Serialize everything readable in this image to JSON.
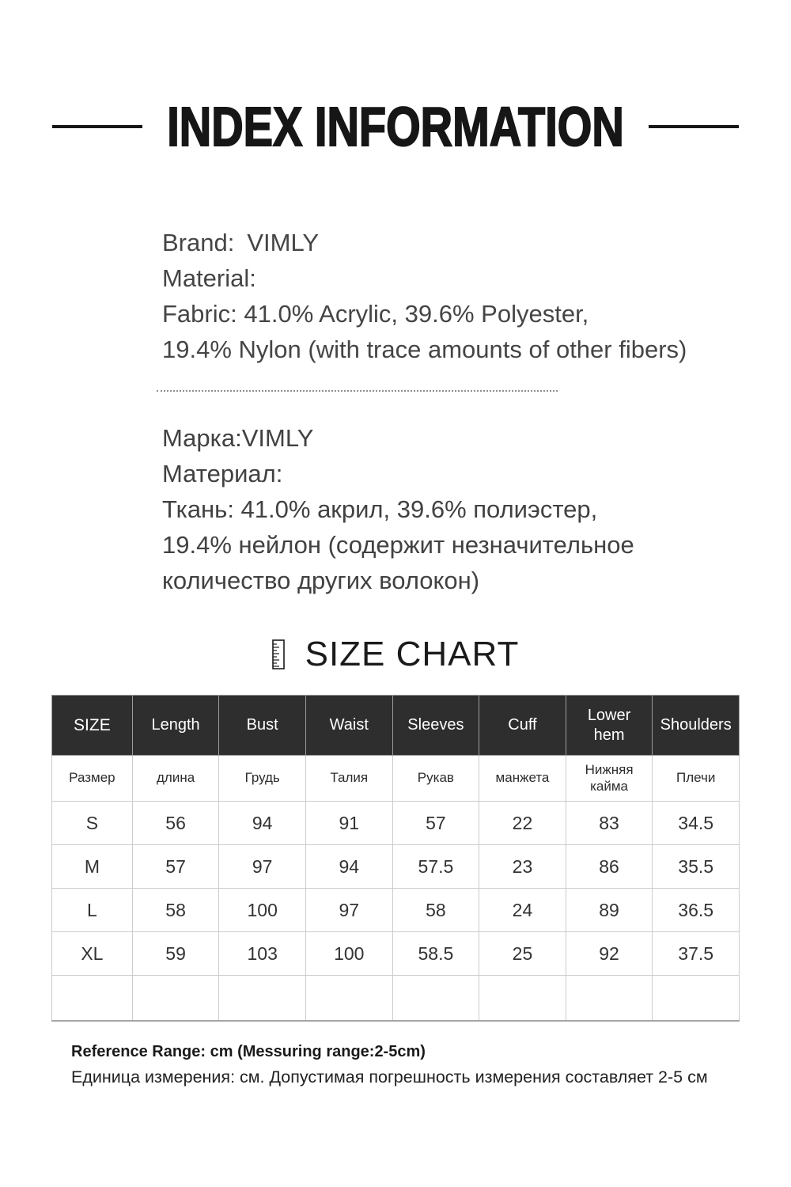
{
  "page": {
    "title": "INDEX INFORMATION",
    "background": "#ffffff"
  },
  "info_en": {
    "brand_label": "Brand:",
    "brand_value": "VIMLY",
    "material_label": "Material:",
    "fabric_lines": [
      "Fabric: 41.0% Acrylic, 39.6% Polyester,",
      "19.4% Nylon (with trace amounts of other fibers)"
    ]
  },
  "info_ru": {
    "brand_label": "Марка:",
    "brand_value": "VIMLY",
    "material_label": "Материал:",
    "fabric_lines": [
      "Ткань: 41.0% акрил, 39.6% полиэстер,",
      "19.4% нейлон (содержит незначительное",
      "количество других волокон)"
    ]
  },
  "size_chart": {
    "heading": "SIZE CHART",
    "icon": "ruler-icon",
    "columns_en": [
      "SIZE",
      "Length",
      "Bust",
      "Waist",
      "Sleeves",
      "Cuff",
      "Lower hem",
      "Shoulders"
    ],
    "columns_ru": [
      "Размер",
      "длина",
      "Грудь",
      "Талия",
      "Рукав",
      "манжета",
      "Нижняя кайма",
      "Плечи"
    ],
    "rows": [
      {
        "size": "S",
        "values": [
          "56",
          "94",
          "91",
          "57",
          "22",
          "83",
          "34.5"
        ]
      },
      {
        "size": "M",
        "values": [
          "57",
          "97",
          "94",
          "57.5",
          "23",
          "86",
          "35.5"
        ]
      },
      {
        "size": "L",
        "values": [
          "58",
          "100",
          "97",
          "58",
          "24",
          "89",
          "36.5"
        ]
      },
      {
        "size": "XL",
        "values": [
          "59",
          "103",
          "100",
          "58.5",
          "25",
          "92",
          "37.5"
        ]
      },
      {
        "size": "",
        "values": [
          "",
          "",
          "",
          "",
          "",
          "",
          ""
        ]
      }
    ]
  },
  "footnotes": {
    "en": "Reference Range: cm (Messuring range:2-5cm)",
    "ru": "Единица измерения: см. Допустимая погрешность измерения составляет 2-5 см"
  },
  "colors": {
    "header_bg": "#2e2e2e",
    "header_text": "#ffffff",
    "body_text": "#454545",
    "title_text": "#161616",
    "table_border": "#cccccc"
  }
}
